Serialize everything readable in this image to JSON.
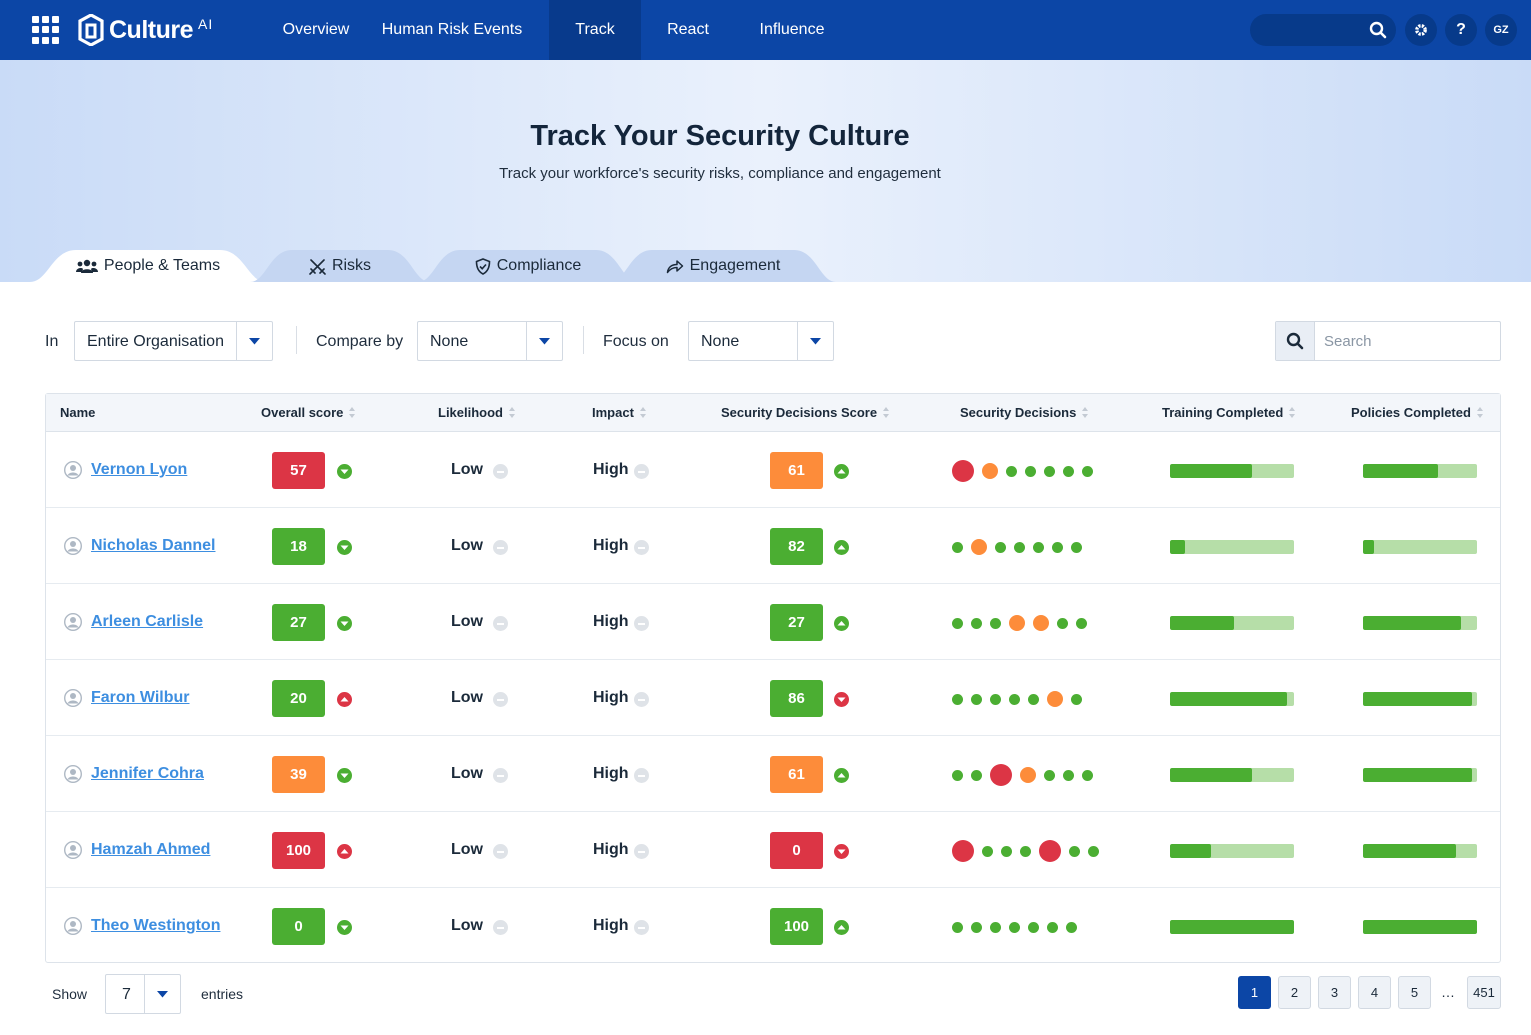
{
  "app": {
    "name": "Culture",
    "suffix": "AI"
  },
  "nav": {
    "items": [
      {
        "label": "Overview",
        "active": false
      },
      {
        "label": "Human Risk Events",
        "active": false
      },
      {
        "label": "Track",
        "active": true
      },
      {
        "label": "React",
        "active": false
      },
      {
        "label": "Influence",
        "active": false
      }
    ],
    "user_initials": "GZ",
    "help_label": "?"
  },
  "hero": {
    "title": "Track Your Security Culture",
    "subtitle": "Track your workforce's security risks, compliance and engagement"
  },
  "tabs": [
    {
      "label": "People & Teams",
      "icon": "people-icon",
      "active": true
    },
    {
      "label": "Risks",
      "icon": "swords-icon",
      "active": false
    },
    {
      "label": "Compliance",
      "icon": "shield-check-icon",
      "active": false
    },
    {
      "label": "Engagement",
      "icon": "share-arrow-icon",
      "active": false
    }
  ],
  "filters": {
    "in_label": "In",
    "in_value": "Entire Organisation",
    "compare_label": "Compare by",
    "compare_value": "None",
    "focus_label": "Focus on",
    "focus_value": "None",
    "search_placeholder": "Search"
  },
  "colors": {
    "brand": "#0c46a6",
    "red": "#dc3545",
    "orange": "#fd8c3a",
    "green": "#4bae32",
    "bar_track": "#b6dea8",
    "trend_down_good": "#4bae32",
    "trend_up_bad": "#dc3545"
  },
  "table": {
    "columns": [
      "Name",
      "Overall score",
      "Likelihood",
      "Impact",
      "Security Decisions Score",
      "Security Decisions",
      "Training Completed",
      "Policies Completed"
    ],
    "rows": [
      {
        "name": "Vernon Lyon",
        "overall": "57",
        "overall_status": "red",
        "overall_trend": "down",
        "likelihood": "Low",
        "impact": "High",
        "sds": "61",
        "sds_status": "orange",
        "sds_trend": "up",
        "decisions": [
          [
            "red",
            "large"
          ],
          [
            "orange",
            "medium"
          ],
          [
            "green",
            "small"
          ],
          [
            "green",
            "small"
          ],
          [
            "green",
            "small"
          ],
          [
            "green",
            "small"
          ],
          [
            "green",
            "small"
          ]
        ],
        "training": 0.66,
        "policies": 0.66
      },
      {
        "name": "Nicholas Dannel",
        "overall": "18",
        "overall_status": "green",
        "overall_trend": "down",
        "likelihood": "Low",
        "impact": "High",
        "sds": "82",
        "sds_status": "green",
        "sds_trend": "up",
        "decisions": [
          [
            "green",
            "small"
          ],
          [
            "orange",
            "medium"
          ],
          [
            "green",
            "small"
          ],
          [
            "green",
            "small"
          ],
          [
            "green",
            "small"
          ],
          [
            "green",
            "small"
          ],
          [
            "green",
            "small"
          ]
        ],
        "training": 0.12,
        "policies": 0.1
      },
      {
        "name": "Arleen Carlisle",
        "overall": "27",
        "overall_status": "green",
        "overall_trend": "down",
        "likelihood": "Low",
        "impact": "High",
        "sds": "27",
        "sds_status": "green",
        "sds_trend": "up",
        "decisions": [
          [
            "green",
            "small"
          ],
          [
            "green",
            "small"
          ],
          [
            "green",
            "small"
          ],
          [
            "orange",
            "medium"
          ],
          [
            "orange",
            "medium"
          ],
          [
            "green",
            "small"
          ],
          [
            "green",
            "small"
          ]
        ],
        "training": 0.52,
        "policies": 0.86
      },
      {
        "name": "Faron Wilbur",
        "overall": "20",
        "overall_status": "green",
        "overall_trend": "up",
        "likelihood": "Low",
        "impact": "High",
        "sds": "86",
        "sds_status": "green",
        "sds_trend": "down",
        "decisions": [
          [
            "green",
            "small"
          ],
          [
            "green",
            "small"
          ],
          [
            "green",
            "small"
          ],
          [
            "green",
            "small"
          ],
          [
            "green",
            "small"
          ],
          [
            "orange",
            "medium"
          ],
          [
            "green",
            "small"
          ]
        ],
        "training": 0.94,
        "policies": 0.96
      },
      {
        "name": "Jennifer Cohra",
        "overall": "39",
        "overall_status": "orange",
        "overall_trend": "down",
        "likelihood": "Low",
        "impact": "High",
        "sds": "61",
        "sds_status": "orange",
        "sds_trend": "up",
        "decisions": [
          [
            "green",
            "small"
          ],
          [
            "green",
            "small"
          ],
          [
            "red",
            "large"
          ],
          [
            "orange",
            "medium"
          ],
          [
            "green",
            "small"
          ],
          [
            "green",
            "small"
          ],
          [
            "green",
            "small"
          ]
        ],
        "training": 0.66,
        "policies": 0.96
      },
      {
        "name": "Hamzah Ahmed",
        "overall": "100",
        "overall_status": "red",
        "overall_trend": "up",
        "likelihood": "Low",
        "impact": "High",
        "sds": "0",
        "sds_status": "red",
        "sds_trend": "down",
        "decisions": [
          [
            "red",
            "large"
          ],
          [
            "green",
            "small"
          ],
          [
            "green",
            "small"
          ],
          [
            "green",
            "small"
          ],
          [
            "red",
            "large"
          ],
          [
            "green",
            "small"
          ],
          [
            "green",
            "small"
          ]
        ],
        "training": 0.33,
        "policies": 0.82
      },
      {
        "name": "Theo Westington",
        "overall": "0",
        "overall_status": "green",
        "overall_trend": "down",
        "likelihood": "Low",
        "impact": "High",
        "sds": "100",
        "sds_status": "green",
        "sds_trend": "up",
        "decisions": [
          [
            "green",
            "small"
          ],
          [
            "green",
            "small"
          ],
          [
            "green",
            "small"
          ],
          [
            "green",
            "small"
          ],
          [
            "green",
            "small"
          ],
          [
            "green",
            "small"
          ],
          [
            "green",
            "small"
          ]
        ],
        "training": 1.0,
        "policies": 1.0
      }
    ]
  },
  "footer": {
    "show_label": "Show",
    "page_size": "7",
    "entries_label": "entries",
    "pages": [
      "1",
      "2",
      "3",
      "4",
      "5"
    ],
    "current_page": "1",
    "ellipsis": "…",
    "last_page": "451"
  }
}
